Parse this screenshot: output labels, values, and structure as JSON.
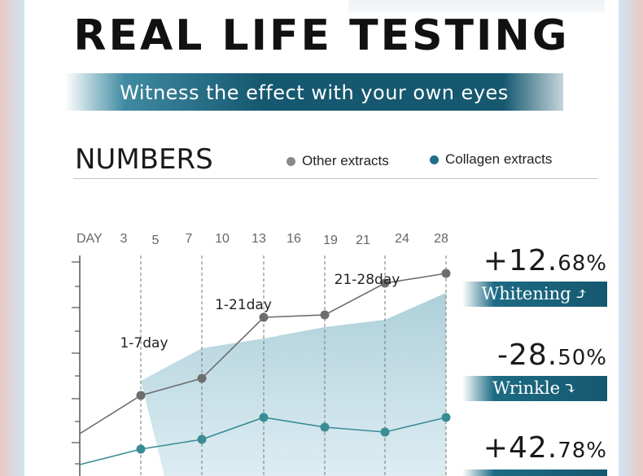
{
  "header": {
    "title": "REAL LIFE TESTING",
    "subtitle": "Witness the effect with your own eyes"
  },
  "section": {
    "title": "NUMBERS"
  },
  "legend": [
    {
      "label": "Other extracts",
      "color": "#8a8a8a"
    },
    {
      "label": "Collagen extracts",
      "color": "#1f6f88"
    }
  ],
  "stats": [
    {
      "value": "+12.",
      "value_small": "68%",
      "label": "Whitening",
      "arrow": "⤴"
    },
    {
      "value": "-28.",
      "value_small": "50%",
      "label": "Wrinkle",
      "arrow": "⤵"
    },
    {
      "value": "+42.",
      "value_small": "78%",
      "label": "",
      "arrow": ""
    }
  ],
  "chart_data": {
    "type": "line",
    "x_label": "DAY",
    "categories": [
      "3",
      "5",
      "7",
      "10",
      "13",
      "16",
      "19",
      "21",
      "24",
      "28"
    ],
    "annotations": [
      "1-7day",
      "1-21day",
      "21-28day"
    ],
    "grid": "vertical dashed lines",
    "series": [
      {
        "name": "Other extracts",
        "color": "#6d6d6d",
        "points": [
          {
            "day": "5",
            "y": 0.42
          },
          {
            "day": "10",
            "y": 0.49
          },
          {
            "day": "13",
            "y": 0.74
          },
          {
            "day": "19",
            "y": 0.75
          },
          {
            "day": "24",
            "y": 0.88
          },
          {
            "day": "28",
            "y": 0.92
          }
        ]
      },
      {
        "name": "Collagen extracts",
        "color": "#3a8c94",
        "points": [
          {
            "day": "5",
            "y": 0.2
          },
          {
            "day": "10",
            "y": 0.24
          },
          {
            "day": "13",
            "y": 0.33
          },
          {
            "day": "19",
            "y": 0.29
          },
          {
            "day": "24",
            "y": 0.27
          },
          {
            "day": "28",
            "y": 0.33
          }
        ]
      }
    ]
  }
}
